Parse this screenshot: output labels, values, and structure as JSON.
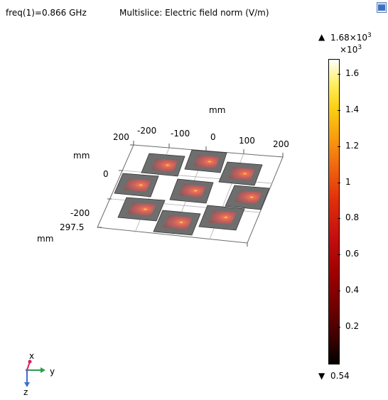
{
  "header": {
    "freq_label": "freq(1)=0.866 GHz",
    "plot_title": "Multislice: Electric field norm (V/m)"
  },
  "axes": {
    "unit_top": "mm",
    "unit_left": "mm",
    "unit_bottom": "mm",
    "x_ticks": [
      "-200",
      "-100",
      "0",
      "100",
      "200"
    ],
    "y_ticks": [
      "200",
      "0",
      "-200"
    ],
    "z_tick": "297.5"
  },
  "colorbar": {
    "max_label": "1.68×10",
    "max_exp": "3",
    "multiplier": "×10",
    "multiplier_exp": "3",
    "ticks": [
      "1.6",
      "1.4",
      "1.2",
      "1",
      "0.8",
      "0.6",
      "0.4",
      "0.2"
    ],
    "min_label": "0.54",
    "up_triangle": "▲",
    "down_triangle": "▼",
    "colors": [
      "#000000",
      "#6e0000",
      "#c41010",
      "#f06210",
      "#fbd010",
      "#ffffff"
    ]
  },
  "orientation": {
    "x": "x",
    "y": "y",
    "z": "z",
    "x_color": "#d62060",
    "y_color": "#2a9d4a",
    "z_color": "#3a6fd0"
  },
  "icons": {
    "corner": "window-icon"
  }
}
